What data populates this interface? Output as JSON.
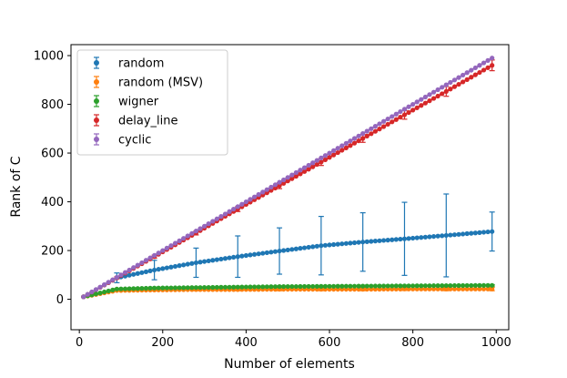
{
  "chart_data": {
    "type": "line",
    "title": "",
    "xlabel": "Number of elements",
    "ylabel": "Rank of C",
    "xlim": [
      -20,
      1030
    ],
    "ylim": [
      -125,
      1045
    ],
    "xticks": [
      0,
      200,
      400,
      600,
      800,
      1000
    ],
    "yticks": [
      0,
      200,
      400,
      600,
      800,
      1000
    ],
    "xtick_labels": [
      "0",
      "200",
      "400",
      "600",
      "800",
      "1000"
    ],
    "ytick_labels": [
      "0",
      "200",
      "400",
      "600",
      "800",
      "1000"
    ],
    "legend_position": "top-left",
    "x": [
      10,
      90,
      180,
      280,
      380,
      480,
      580,
      680,
      780,
      880,
      990
    ],
    "series": [
      {
        "name": "random",
        "color": "#1f77b4",
        "values": [
          10,
          88,
          120,
          150,
          175,
          198,
          220,
          235,
          248,
          262,
          278
        ],
        "errors": [
          0,
          20,
          40,
          60,
          85,
          95,
          120,
          120,
          150,
          170,
          80
        ]
      },
      {
        "name": "random (MSV)",
        "color": "#ff7f0e",
        "values": [
          10,
          36,
          38,
          40,
          40,
          41,
          41,
          41,
          42,
          42,
          42
        ],
        "errors": [
          0,
          3,
          4,
          5,
          5,
          6,
          6,
          6,
          6,
          7,
          7
        ]
      },
      {
        "name": "wigner",
        "color": "#2ca02c",
        "values": [
          10,
          42,
          46,
          48,
          50,
          52,
          53,
          54,
          55,
          56,
          57
        ],
        "errors": [
          0,
          2,
          3,
          3,
          3,
          3,
          3,
          3,
          3,
          3,
          3
        ]
      },
      {
        "name": "delay_line",
        "color": "#d62728",
        "values": [
          10,
          88,
          175,
          272,
          370,
          466,
          563,
          660,
          757,
          853,
          960
        ],
        "errors": [
          0,
          4,
          6,
          8,
          10,
          12,
          14,
          16,
          18,
          20,
          22
        ]
      },
      {
        "name": "cyclic",
        "color": "#9467bd",
        "values": [
          10,
          90,
          180,
          280,
          380,
          480,
          580,
          680,
          780,
          880,
          990
        ],
        "errors": [
          0,
          0,
          0,
          0,
          0,
          0,
          0,
          0,
          0,
          0,
          0
        ]
      }
    ]
  }
}
